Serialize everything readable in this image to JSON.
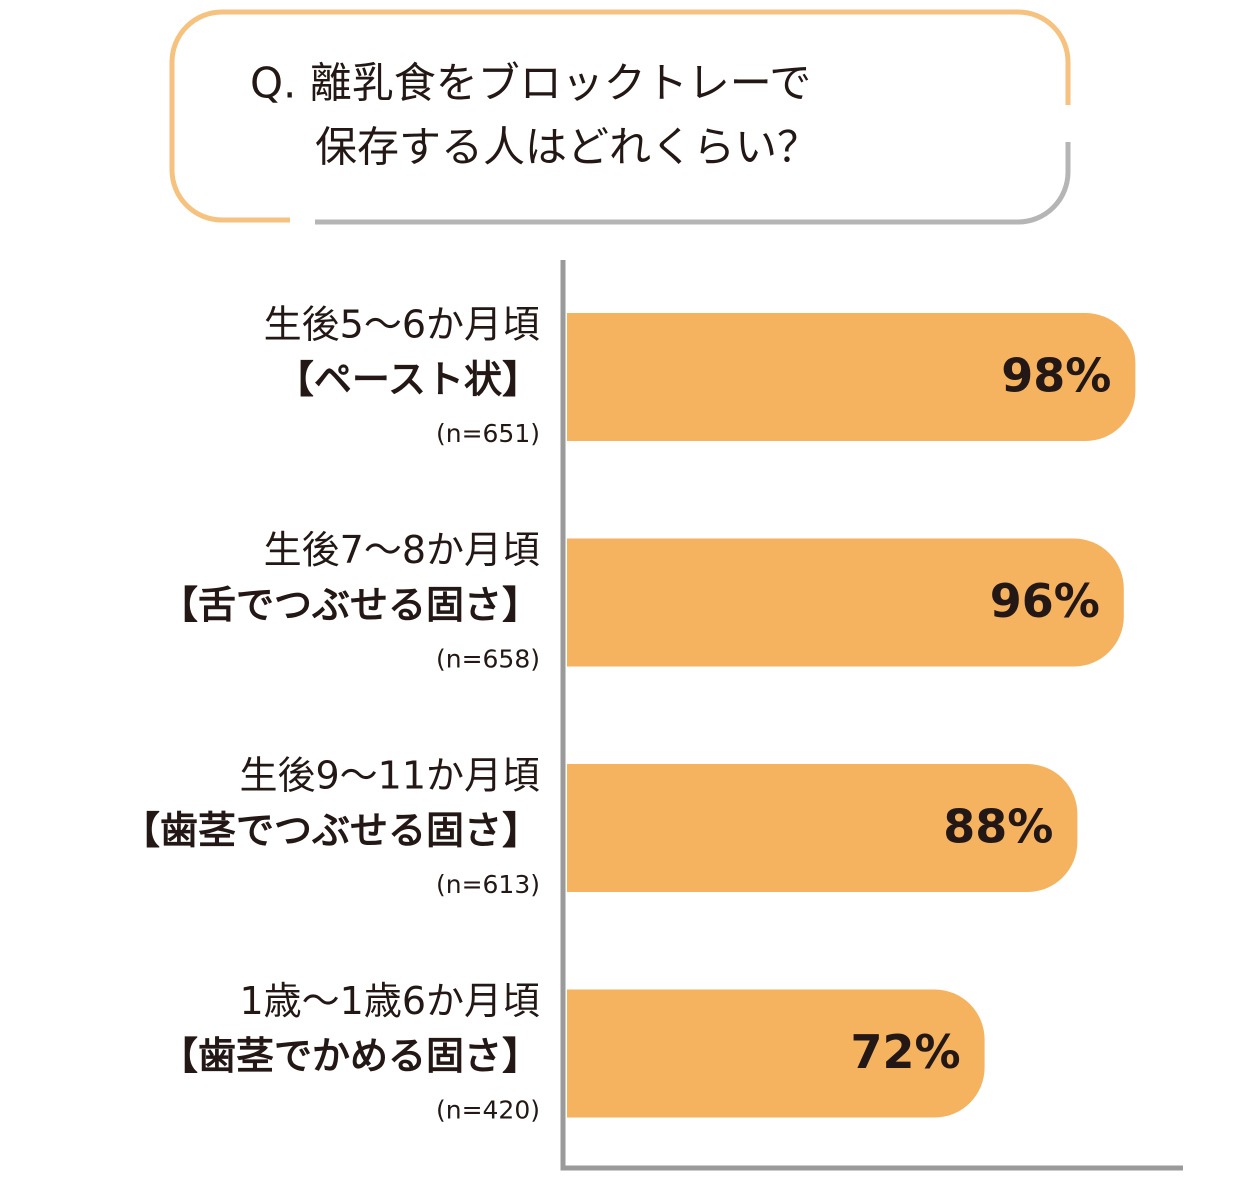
{
  "chart_data": {
    "type": "barh",
    "title": [
      "Q. 離乳食をブロックトレーで",
      "保存する人はどれくらい？"
    ],
    "categories": [
      "生後5～6か月頃",
      "生後7～8か月頃",
      "生後9～11か月頃",
      "1歳～1歳6か月頃"
    ],
    "sublabels": [
      "【ペースト状】",
      "【舌でつぶせる固さ】",
      "【歯茎でつぶせる固さ】",
      "【歯茎でかめる固さ】"
    ],
    "n_labels": [
      "(n=651)",
      "(n=658)",
      "(n=613)",
      "(n=420)"
    ],
    "values": [
      98,
      96,
      88,
      72
    ],
    "value_labels": [
      "98%",
      "96%",
      "88%",
      "72%"
    ],
    "color": "#f5b25f",
    "xlim": [
      0,
      100
    ]
  }
}
